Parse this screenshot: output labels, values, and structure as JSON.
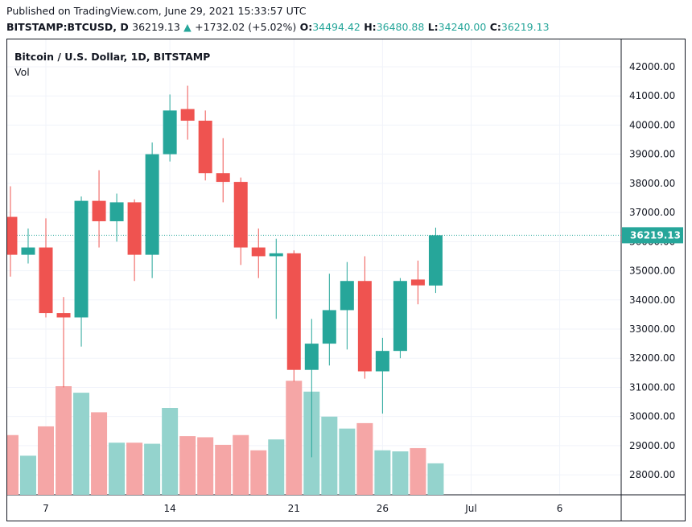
{
  "header": {
    "published": "Published on TradingView.com, June 29, 2021 15:33:57 UTC",
    "symbol": "BITSTAMP:BTCUSD, D",
    "last": "36219.13",
    "up_arrow": "▲",
    "change": "+1732.02 (+5.02%)",
    "open_label": "O:",
    "open": "34494.42",
    "high_label": "H:",
    "high": "36480.88",
    "low_label": "L:",
    "low": "34240.00",
    "close_label": "C:",
    "close": "36219.13"
  },
  "legend": {
    "title": "Bitcoin / U.S. Dollar, 1D, BITSTAMP",
    "vol": "Vol"
  },
  "colors": {
    "up": "#26a69a",
    "down": "#ef5350",
    "up_vol": "#94d3cd",
    "down_vol": "#f5a6a6",
    "grid": "#f0f3fa",
    "price_line": "#26a69a"
  },
  "chart_data": {
    "type": "candlestick",
    "title": "Bitcoin / U.S. Dollar, 1D, BITSTAMP",
    "ylim": [
      27500,
      42500
    ],
    "y_ticks": [
      "42000.00",
      "41000.00",
      "40000.00",
      "39000.00",
      "38000.00",
      "37000.00",
      "36000.00",
      "35000.00",
      "34000.00",
      "33000.00",
      "32000.00",
      "31000.00",
      "30000.00",
      "29000.00",
      "28000.00"
    ],
    "x_ticks": [
      {
        "label": "7",
        "day": 7
      },
      {
        "label": "14",
        "day": 14
      },
      {
        "label": "21",
        "day": 21
      },
      {
        "label": "26",
        "day": 26
      },
      {
        "label": "Jul",
        "day": 31
      },
      {
        "label": "6",
        "day": 36
      }
    ],
    "last_price_label": "36219.13",
    "last_price": 36219.13,
    "candles": [
      {
        "day": 5,
        "o": 36850,
        "h": 37900,
        "l": 34800,
        "c": 35550,
        "vol": 0.55
      },
      {
        "day": 6,
        "o": 35550,
        "h": 36450,
        "l": 35250,
        "c": 35800,
        "vol": 0.36
      },
      {
        "day": 7,
        "o": 35800,
        "h": 36800,
        "l": 33400,
        "c": 33550,
        "vol": 0.63
      },
      {
        "day": 8,
        "o": 33550,
        "h": 34100,
        "l": 31000,
        "c": 33400,
        "vol": 1.0
      },
      {
        "day": 9,
        "o": 33400,
        "h": 37550,
        "l": 32400,
        "c": 37400,
        "vol": 0.94
      },
      {
        "day": 10,
        "o": 37400,
        "h": 38450,
        "l": 35800,
        "c": 36700,
        "vol": 0.76
      },
      {
        "day": 11,
        "o": 36700,
        "h": 37650,
        "l": 36000,
        "c": 37350,
        "vol": 0.48
      },
      {
        "day": 12,
        "o": 37350,
        "h": 37450,
        "l": 34650,
        "c": 35550,
        "vol": 0.48
      },
      {
        "day": 13,
        "o": 35550,
        "h": 39400,
        "l": 34750,
        "c": 39000,
        "vol": 0.47
      },
      {
        "day": 14,
        "o": 39000,
        "h": 41050,
        "l": 38750,
        "c": 40500,
        "vol": 0.8
      },
      {
        "day": 15,
        "o": 40550,
        "h": 41350,
        "l": 39500,
        "c": 40150,
        "vol": 0.54
      },
      {
        "day": 16,
        "o": 40150,
        "h": 40500,
        "l": 38100,
        "c": 38350,
        "vol": 0.53
      },
      {
        "day": 17,
        "o": 38350,
        "h": 39550,
        "l": 37350,
        "c": 38050,
        "vol": 0.46
      },
      {
        "day": 18,
        "o": 38050,
        "h": 38200,
        "l": 35200,
        "c": 35800,
        "vol": 0.55
      },
      {
        "day": 19,
        "o": 35800,
        "h": 36450,
        "l": 34750,
        "c": 35500,
        "vol": 0.41
      },
      {
        "day": 20,
        "o": 35500,
        "h": 36100,
        "l": 33350,
        "c": 35600,
        "vol": 0.51
      },
      {
        "day": 21,
        "o": 35600,
        "h": 35700,
        "l": 31200,
        "c": 31600,
        "vol": 1.05
      },
      {
        "day": 22,
        "o": 31600,
        "h": 33350,
        "l": 28600,
        "c": 32500,
        "vol": 0.95
      },
      {
        "day": 23,
        "o": 32500,
        "h": 34900,
        "l": 31750,
        "c": 33650,
        "vol": 0.72
      },
      {
        "day": 24,
        "o": 33650,
        "h": 35300,
        "l": 32300,
        "c": 34650,
        "vol": 0.61
      },
      {
        "day": 25,
        "o": 34650,
        "h": 35500,
        "l": 31300,
        "c": 31550,
        "vol": 0.66
      },
      {
        "day": 26,
        "o": 31550,
        "h": 32700,
        "l": 30100,
        "c": 32250,
        "vol": 0.41
      },
      {
        "day": 27,
        "o": 32250,
        "h": 34750,
        "l": 32000,
        "c": 34650,
        "vol": 0.4
      },
      {
        "day": 28,
        "o": 34700,
        "h": 35350,
        "l": 33850,
        "c": 34500,
        "vol": 0.43
      },
      {
        "day": 29,
        "o": 34494.42,
        "h": 36480.88,
        "l": 34240.0,
        "c": 36219.13,
        "vol": 0.29
      }
    ]
  }
}
